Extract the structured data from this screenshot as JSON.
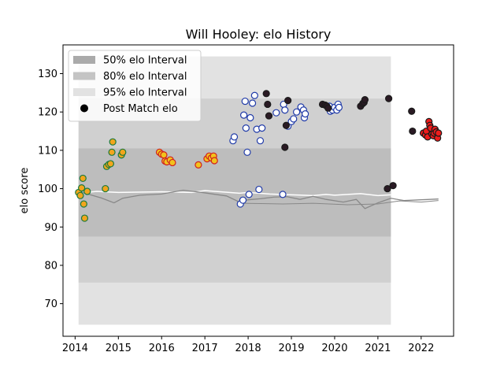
{
  "chart_data": {
    "type": "scatter",
    "title": "Will Hooley: elo History",
    "xlabel": "",
    "ylabel": "elo score",
    "xlim": [
      2013.72,
      2022.75
    ],
    "ylim": [
      61.5,
      137.5
    ],
    "x_ticks": [
      2014,
      2015,
      2016,
      2017,
      2018,
      2019,
      2020,
      2021,
      2022
    ],
    "y_ticks": [
      70,
      80,
      90,
      100,
      110,
      120,
      130
    ],
    "legend_position": "top-left",
    "grid": false,
    "legend": [
      {
        "label": "50% elo Interval",
        "kind": "band",
        "color": "#aaaaaa"
      },
      {
        "label": "80% elo Interval",
        "kind": "band",
        "color": "#c4c4c4"
      },
      {
        "label": "95% elo Interval",
        "kind": "band",
        "color": "#e2e2e2"
      },
      {
        "label": "Post Match elo",
        "kind": "marker",
        "color": "#000000"
      }
    ],
    "bands": [
      {
        "name": "95% elo Interval",
        "color": "#e2e2e2",
        "x": [
          2014.08,
          2021.3
        ],
        "lower": 64.5,
        "upper": 134.5
      },
      {
        "name": "80% elo Interval",
        "color": "#d0d0d0",
        "x": [
          2014.08,
          2021.3
        ],
        "lower": 75.5,
        "upper": 123.5
      },
      {
        "name": "50% elo Interval",
        "color": "#bdbdbd",
        "x": [
          2014.08,
          2021.3
        ],
        "lower": 87.5,
        "upper": 110.5
      }
    ],
    "series": [
      {
        "face": "#f2a51c",
        "edge": "#1a7a3c",
        "points": [
          [
            2014.08,
            99.0
          ],
          [
            2014.12,
            98.2
          ],
          [
            2014.15,
            100.2
          ],
          [
            2014.18,
            102.7
          ],
          [
            2014.2,
            96.0
          ],
          [
            2014.22,
            92.3
          ],
          [
            2014.28,
            99.3
          ],
          [
            2014.7,
            100.0
          ],
          [
            2014.73,
            105.8
          ],
          [
            2014.78,
            106.3
          ],
          [
            2014.82,
            106.5
          ],
          [
            2014.85,
            109.5
          ],
          [
            2014.87,
            112.2
          ],
          [
            2015.07,
            108.8
          ],
          [
            2015.1,
            109.5
          ]
        ]
      },
      {
        "face": "#f2c21c",
        "edge": "#d02020",
        "points": [
          [
            2015.95,
            109.5
          ],
          [
            2016.0,
            109.0
          ],
          [
            2016.05,
            108.8
          ],
          [
            2016.08,
            107.2
          ],
          [
            2016.12,
            107.0
          ],
          [
            2016.2,
            107.5
          ],
          [
            2016.25,
            106.8
          ],
          [
            2016.85,
            106.2
          ],
          [
            2017.05,
            107.8
          ],
          [
            2017.1,
            108.5
          ],
          [
            2017.15,
            108.0
          ],
          [
            2017.2,
            108.5
          ],
          [
            2017.22,
            107.3
          ]
        ]
      },
      {
        "face": "#ffffff",
        "edge": "#1f3aa8",
        "points": [
          [
            2017.65,
            112.5
          ],
          [
            2017.68,
            113.5
          ],
          [
            2017.82,
            96.0
          ],
          [
            2017.88,
            97.0
          ],
          [
            2017.9,
            119.2
          ],
          [
            2017.93,
            122.8
          ],
          [
            2017.95,
            115.8
          ],
          [
            2017.98,
            109.5
          ],
          [
            2018.02,
            98.5
          ],
          [
            2018.05,
            118.5
          ],
          [
            2018.1,
            122.3
          ],
          [
            2018.15,
            124.3
          ],
          [
            2018.2,
            115.5
          ],
          [
            2018.25,
            99.8
          ],
          [
            2018.28,
            112.5
          ],
          [
            2018.32,
            115.8
          ],
          [
            2018.65,
            119.8
          ],
          [
            2018.8,
            98.5
          ],
          [
            2018.82,
            122.0
          ],
          [
            2018.85,
            120.5
          ],
          [
            2018.92,
            116.3
          ],
          [
            2019.0,
            117.5
          ],
          [
            2019.05,
            118.2
          ],
          [
            2019.12,
            120.0
          ],
          [
            2019.22,
            121.3
          ],
          [
            2019.28,
            120.5
          ],
          [
            2019.3,
            118.5
          ],
          [
            2019.32,
            119.5
          ],
          [
            2019.88,
            121.5
          ],
          [
            2019.9,
            120.2
          ],
          [
            2019.95,
            120.5
          ],
          [
            2020.0,
            121.2
          ],
          [
            2020.05,
            120.5
          ],
          [
            2020.08,
            122.0
          ],
          [
            2020.1,
            121.2
          ]
        ]
      },
      {
        "face": "#2a1a24",
        "edge": "#1a1a1a",
        "points": [
          [
            2018.42,
            124.8
          ],
          [
            2018.45,
            122.0
          ],
          [
            2018.48,
            119.0
          ],
          [
            2018.85,
            110.8
          ],
          [
            2018.88,
            116.5
          ],
          [
            2018.92,
            123.0
          ],
          [
            2019.72,
            122.0
          ],
          [
            2019.78,
            121.8
          ],
          [
            2019.82,
            121.5
          ],
          [
            2019.85,
            121.0
          ],
          [
            2020.6,
            121.5
          ],
          [
            2020.65,
            122.2
          ],
          [
            2020.68,
            122.5
          ],
          [
            2020.7,
            123.2
          ],
          [
            2021.22,
            100.0
          ],
          [
            2021.25,
            123.5
          ],
          [
            2021.35,
            100.8
          ],
          [
            2021.78,
            120.2
          ],
          [
            2021.8,
            115.0
          ]
        ]
      },
      {
        "face": "#ee1c1c",
        "edge": "#1a1a1a",
        "points": [
          [
            2022.05,
            114.5
          ],
          [
            2022.1,
            114.0
          ],
          [
            2022.12,
            115.0
          ],
          [
            2022.15,
            113.5
          ],
          [
            2022.18,
            117.5
          ],
          [
            2022.2,
            116.5
          ],
          [
            2022.22,
            115.8
          ],
          [
            2022.25,
            114.2
          ],
          [
            2022.28,
            113.8
          ],
          [
            2022.3,
            114.5
          ],
          [
            2022.32,
            115.5
          ],
          [
            2022.35,
            114.8
          ],
          [
            2022.38,
            113.2
          ],
          [
            2022.4,
            114.5
          ]
        ]
      }
    ],
    "lines": [
      {
        "color": "#ffffff",
        "width": 1.5,
        "points": [
          [
            2014.08,
            98.8
          ],
          [
            2014.5,
            99.3
          ],
          [
            2015.0,
            99.0
          ],
          [
            2016.0,
            99.2
          ],
          [
            2016.7,
            99.0
          ],
          [
            2017.0,
            99.5
          ],
          [
            2017.8,
            98.8
          ],
          [
            2018.0,
            99.0
          ],
          [
            2018.5,
            98.6
          ],
          [
            2019.0,
            98.4
          ],
          [
            2019.5,
            98.2
          ],
          [
            2019.8,
            98.5
          ],
          [
            2020.0,
            98.3
          ],
          [
            2020.6,
            98.7
          ],
          [
            2021.0,
            98.2
          ],
          [
            2021.3,
            98.4
          ]
        ]
      },
      {
        "color": "#888888",
        "width": 1.3,
        "points": [
          [
            2014.08,
            99.3
          ],
          [
            2014.6,
            97.6
          ],
          [
            2014.9,
            96.3
          ],
          [
            2015.1,
            97.5
          ],
          [
            2015.5,
            98.3
          ],
          [
            2016.0,
            98.6
          ],
          [
            2016.5,
            99.6
          ],
          [
            2017.0,
            98.9
          ],
          [
            2017.5,
            98.1
          ],
          [
            2017.8,
            96.5
          ],
          [
            2018.0,
            97.1
          ],
          [
            2018.3,
            97.4
          ],
          [
            2018.6,
            97.8
          ],
          [
            2018.9,
            97.9
          ],
          [
            2019.2,
            97.2
          ],
          [
            2019.5,
            98.0
          ],
          [
            2019.8,
            97.2
          ],
          [
            2020.2,
            96.5
          ],
          [
            2020.5,
            97.2
          ],
          [
            2020.7,
            94.8
          ],
          [
            2021.0,
            96.3
          ],
          [
            2021.3,
            97.5
          ],
          [
            2021.6,
            96.9
          ],
          [
            2022.0,
            97.1
          ],
          [
            2022.4,
            97.3
          ]
        ]
      },
      {
        "color": "#888888",
        "width": 1.0,
        "points": [
          [
            2017.8,
            96.2
          ],
          [
            2018.3,
            96.1
          ],
          [
            2018.8,
            96.0
          ],
          [
            2019.5,
            96.2
          ],
          [
            2020.3,
            95.8
          ],
          [
            2021.0,
            96.0
          ],
          [
            2021.5,
            96.8
          ],
          [
            2022.0,
            96.5
          ],
          [
            2022.4,
            96.9
          ]
        ]
      }
    ]
  }
}
